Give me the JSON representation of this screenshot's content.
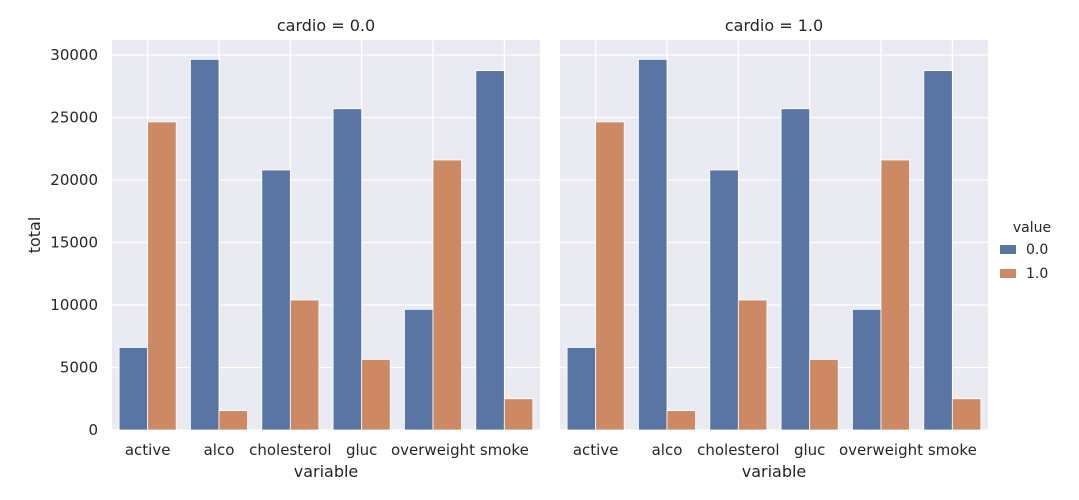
{
  "chart_data": {
    "type": "bar",
    "facet_variable": "cardio",
    "panels": [
      {
        "title": "cardio = 0.0",
        "categories": [
          "active",
          "alco",
          "cholesterol",
          "gluc",
          "overweight",
          "smoke"
        ],
        "series": [
          {
            "name": "0.0",
            "values": [
              6600,
              29650,
              20800,
              25700,
              9650,
              28750
            ]
          },
          {
            "name": "1.0",
            "values": [
              24650,
              1550,
              10400,
              5650,
              21600,
              2500
            ]
          }
        ]
      },
      {
        "title": "cardio = 1.0",
        "categories": [
          "active",
          "alco",
          "cholesterol",
          "gluc",
          "overweight",
          "smoke"
        ],
        "series": [
          {
            "name": "0.0",
            "values": [
              6600,
              29650,
              20800,
              25700,
              9650,
              28750
            ]
          },
          {
            "name": "1.0",
            "values": [
              24650,
              1550,
              10400,
              5650,
              21600,
              2500
            ]
          }
        ]
      }
    ],
    "xlabel": "variable",
    "ylabel": "total",
    "ylim": [
      0,
      31200
    ],
    "yticks": [
      0,
      5000,
      10000,
      15000,
      20000,
      25000,
      30000
    ],
    "grid": true,
    "legend": {
      "title": "value",
      "entries": [
        "0.0",
        "1.0"
      ],
      "placement": "right"
    },
    "colors": {
      "0.0": "#5975a4",
      "1.0": "#cc8963",
      "panel_bg": "#eaeaf2",
      "grid": "#ffffff"
    }
  }
}
